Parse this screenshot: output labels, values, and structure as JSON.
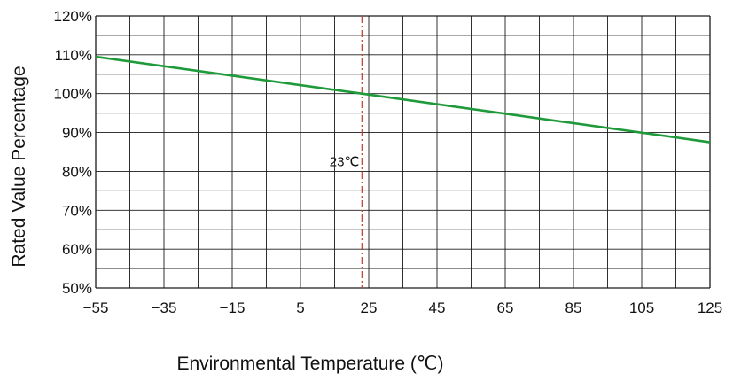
{
  "chart_data": {
    "type": "line",
    "title": "",
    "xlabel": "Environmental Temperature (℃)",
    "ylabel": "Rated Value Percentage",
    "xlim": [
      -55,
      125
    ],
    "ylim": [
      50,
      120
    ],
    "x_major_ticks": [
      -55,
      -35,
      -15,
      5,
      25,
      45,
      65,
      85,
      105,
      125
    ],
    "x_tick_labels": [
      "−55",
      "−35",
      "−15",
      "5",
      "25",
      "45",
      "65",
      "85",
      "105",
      "125"
    ],
    "x_grid_step": 10,
    "y_ticks": [
      50,
      60,
      70,
      80,
      90,
      100,
      110,
      120
    ],
    "y_tick_labels": [
      "50%",
      "60%",
      "70%",
      "80%",
      "90%",
      "100%",
      "110%",
      "120%"
    ],
    "y_grid_step": 5,
    "grid": true,
    "series": [
      {
        "name": "",
        "color": "#1f9a3a",
        "points": [
          [
            -55,
            109.5
          ],
          [
            23,
            100
          ],
          [
            125,
            87.5
          ]
        ]
      }
    ],
    "reference_line": {
      "axis": "x",
      "value": 23,
      "label": "23℃",
      "color": "#c0392b",
      "style": "dash-dot"
    }
  }
}
